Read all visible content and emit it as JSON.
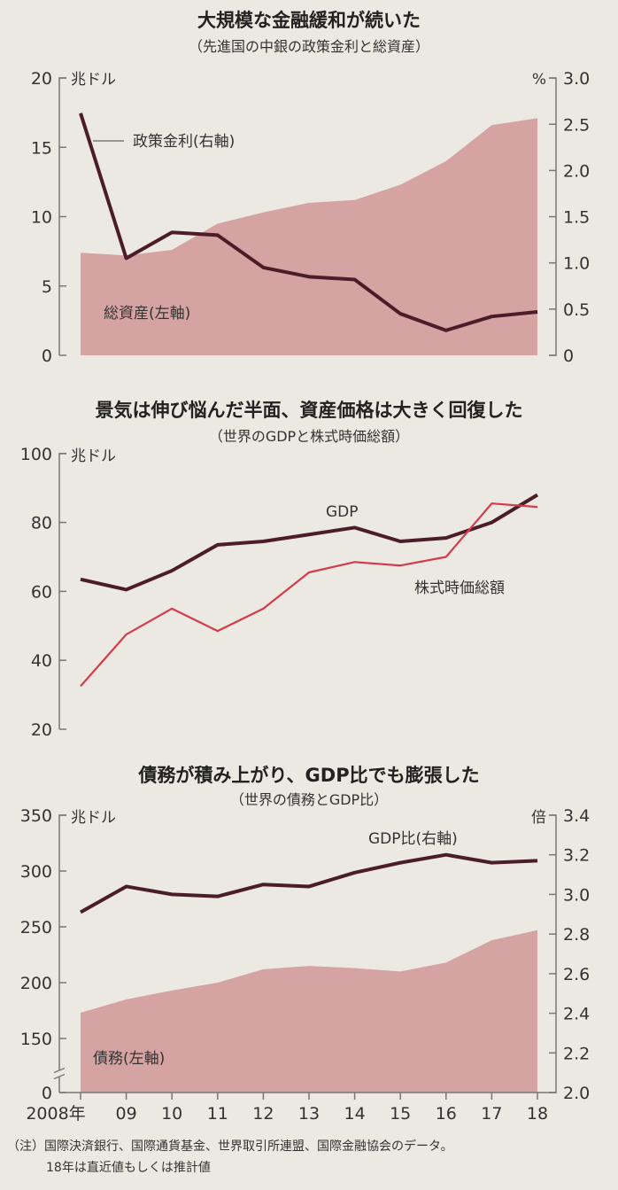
{
  "colors": {
    "background": "#ece8e2",
    "area": "#d5a3a1",
    "dark_line": "#4b1d29",
    "red_line": "#d43c4c",
    "axis": "#777777"
  },
  "chart_data": [
    {
      "type": "area+line",
      "title": "大規模な金融緩和が続いた",
      "subtitle": "（先進国の中銀の政策金利と総資産）",
      "left_unit": "兆ドル",
      "right_unit": "%",
      "left_ticks": [
        "0",
        "5",
        "10",
        "15",
        "20"
      ],
      "right_ticks": [
        "0",
        "0.5",
        "1.0",
        "1.5",
        "2.0",
        "2.5",
        "3.0"
      ],
      "ylim_left": [
        0,
        20
      ],
      "ylim_right": [
        0,
        3.0
      ],
      "x": [
        "2008",
        "09",
        "10",
        "11",
        "12",
        "13",
        "14",
        "15",
        "16",
        "17",
        "18"
      ],
      "series": [
        {
          "name": "総資産(左軸)",
          "axis": "left",
          "kind": "area",
          "values": [
            7.4,
            7.2,
            7.6,
            9.5,
            10.3,
            11.0,
            11.2,
            12.3,
            14.0,
            16.6,
            17.1
          ]
        },
        {
          "name": "政策金利(右軸)",
          "axis": "right",
          "kind": "line",
          "values": [
            2.62,
            1.05,
            1.33,
            1.3,
            0.95,
            0.85,
            0.82,
            0.45,
            0.27,
            0.42,
            0.47
          ]
        }
      ]
    },
    {
      "type": "line",
      "title": "景気は伸び悩んだ半面、資産価格は大きく回復した",
      "subtitle": "（世界のGDPと株式時価総額）",
      "left_unit": "兆ドル",
      "left_ticks": [
        "20",
        "40",
        "60",
        "80",
        "100"
      ],
      "ylim_left": [
        20,
        100
      ],
      "x": [
        "2008",
        "09",
        "10",
        "11",
        "12",
        "13",
        "14",
        "15",
        "16",
        "17",
        "18"
      ],
      "series": [
        {
          "name": "GDP",
          "kind": "line",
          "values": [
            63.5,
            60.5,
            66,
            73.5,
            74.5,
            76.5,
            78.5,
            74.5,
            75.5,
            80,
            88
          ]
        },
        {
          "name": "株式時価総額",
          "kind": "line",
          "values": [
            32.5,
            47.5,
            55,
            48.5,
            55,
            65.5,
            68.5,
            67.5,
            70,
            85.5,
            84.5
          ]
        }
      ]
    },
    {
      "type": "area+line",
      "title": "債務が積み上がり、GDP比でも膨張した",
      "subtitle": "（世界の債務とGDP比）",
      "left_unit": "兆ドル",
      "right_unit": "倍",
      "left_ticks": [
        "0",
        "150",
        "200",
        "250",
        "300",
        "350"
      ],
      "right_ticks": [
        "2.0",
        "2.2",
        "2.4",
        "2.6",
        "2.8",
        "3.0",
        "3.2",
        "3.4"
      ],
      "ylim_left": [
        0,
        350
      ],
      "axis_break": [
        0,
        150
      ],
      "ylim_right": [
        2.0,
        3.4
      ],
      "x": [
        "2008年",
        "09",
        "10",
        "11",
        "12",
        "13",
        "14",
        "15",
        "16",
        "17",
        "18"
      ],
      "series": [
        {
          "name": "債務(左軸)",
          "axis": "left",
          "kind": "area",
          "values": [
            173,
            185,
            193,
            200,
            212,
            215,
            213,
            210,
            218,
            238,
            247
          ]
        },
        {
          "name": "GDP比(右軸)",
          "axis": "right",
          "kind": "line",
          "values": [
            2.91,
            3.04,
            3.0,
            2.99,
            3.05,
            3.04,
            3.11,
            3.16,
            3.2,
            3.16,
            3.17
          ]
        }
      ]
    }
  ],
  "notes": [
    "（注）国際決済銀行、国際通貨基金、世界取引所連盟、国際金融協会のデータ。",
    "18年は直近値もしくは推計値"
  ]
}
